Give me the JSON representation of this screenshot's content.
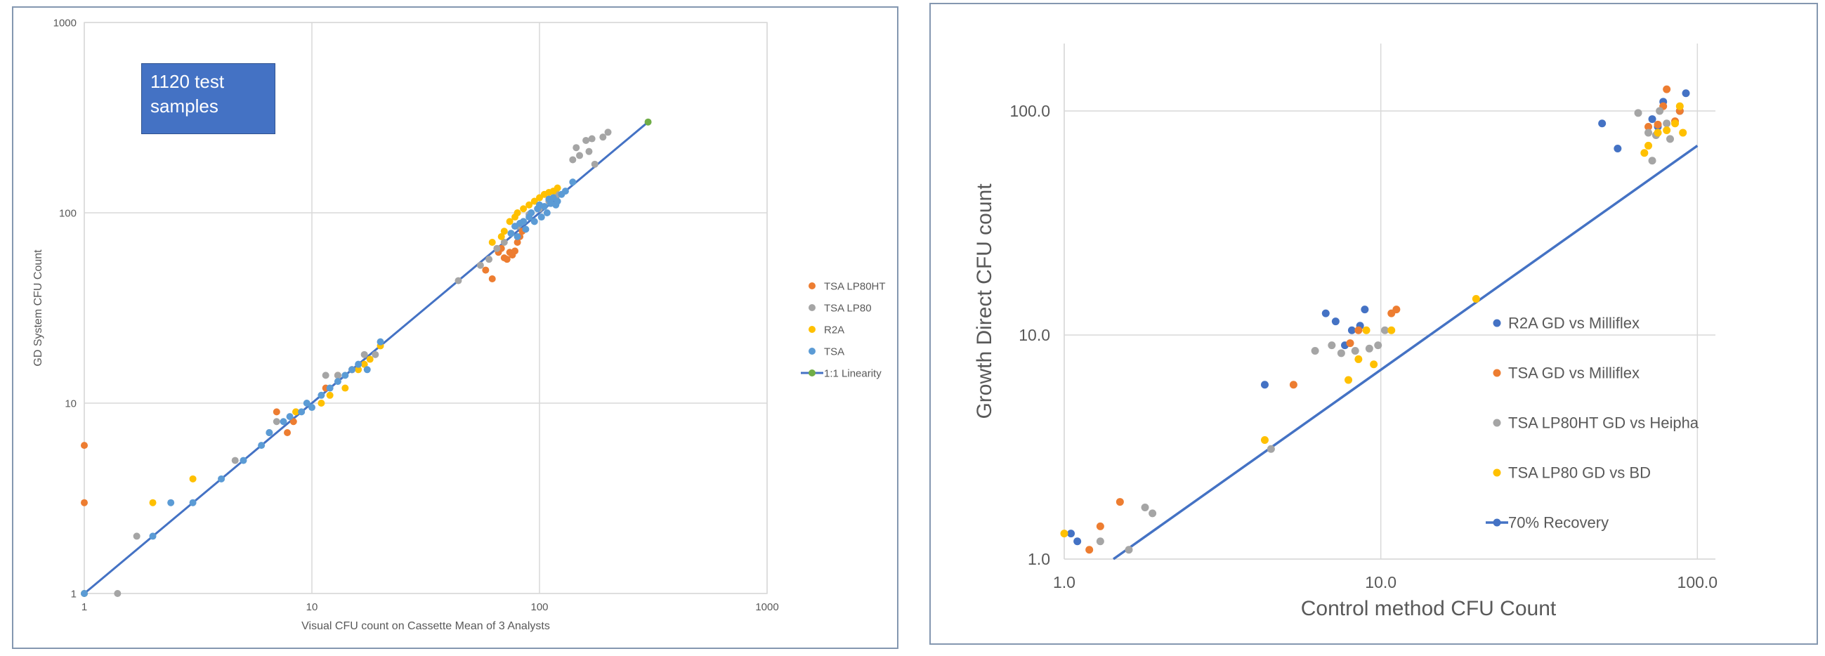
{
  "chart_data": [
    {
      "type": "scatter",
      "title": "",
      "xlabel": "Visual CFU count on Cassette Mean of 3 Analysts",
      "ylabel": "GD System CFU Count",
      "xscale": "log",
      "yscale": "log",
      "xlim": [
        1,
        1000
      ],
      "ylim": [
        1,
        1000
      ],
      "x_ticks": [
        "1",
        "10",
        "100",
        "1000"
      ],
      "y_ticks": [
        "1",
        "10",
        "100",
        "1000"
      ],
      "grid": true,
      "legend_position": "right",
      "annotation": "1120 test samples",
      "series": [
        {
          "name": "TSA LP80HT",
          "color": "#ed7d31",
          "marker": "dot",
          "x": [
            1,
            1,
            7,
            7.8,
            8.3,
            11.5,
            13,
            15,
            58,
            62,
            66,
            68,
            70,
            72,
            74,
            76,
            78,
            80,
            82,
            84
          ],
          "y": [
            6,
            3,
            9,
            7,
            8,
            12,
            14,
            15,
            50,
            45,
            62,
            65,
            58,
            57,
            62,
            60,
            63,
            70,
            75,
            80
          ]
        },
        {
          "name": "TSA LP80",
          "color": "#a5a5a5",
          "marker": "dot",
          "x": [
            1.4,
            1.7,
            4.6,
            6.5,
            7,
            8.5,
            11.5,
            13,
            15,
            17,
            19,
            44,
            55,
            60,
            65,
            70,
            75,
            80,
            85,
            90,
            100,
            110,
            120,
            140,
            145,
            150,
            160,
            165,
            170,
            175,
            190,
            200
          ],
          "y": [
            1,
            2,
            5,
            7,
            8,
            9,
            14,
            14,
            15,
            18,
            18,
            44,
            53,
            57,
            65,
            70,
            78,
            85,
            90,
            98,
            105,
            115,
            125,
            190,
            220,
            200,
            240,
            210,
            245,
            180,
            250,
            265
          ]
        },
        {
          "name": "R2A",
          "color": "#ffc000",
          "marker": "dot",
          "x": [
            2,
            3,
            8.5,
            11,
            12,
            14,
            16,
            17,
            18,
            20,
            62,
            68,
            70,
            74,
            78,
            80,
            85,
            90,
            95,
            100,
            105,
            110,
            115,
            120
          ],
          "y": [
            3,
            4,
            9,
            10,
            11,
            12,
            15,
            16,
            17,
            20,
            70,
            75,
            80,
            90,
            95,
            100,
            105,
            110,
            115,
            120,
            125,
            128,
            130,
            135
          ]
        },
        {
          "name": "TSA",
          "color": "#5b9bd5",
          "marker": "dot",
          "x": [
            1,
            2,
            2.4,
            3,
            4,
            5,
            6,
            6.5,
            7.5,
            8,
            9,
            9.5,
            10,
            11,
            12,
            13,
            14,
            15,
            16,
            17.5,
            20,
            75,
            78,
            80,
            82,
            85,
            87,
            90,
            92,
            95,
            98,
            100,
            102,
            105,
            108,
            110,
            112,
            115,
            118,
            120,
            125,
            130,
            140
          ],
          "y": [
            1,
            2,
            3,
            3,
            4,
            5,
            6,
            7,
            8,
            8.5,
            9,
            10,
            9.5,
            11,
            12,
            13,
            14,
            15,
            16,
            15,
            21,
            78,
            85,
            75,
            88,
            90,
            82,
            95,
            100,
            90,
            105,
            110,
            95,
            108,
            100,
            118,
            112,
            120,
            110,
            115,
            125,
            130,
            145
          ]
        },
        {
          "name": "1:1 Linearity",
          "color": "#4472c4",
          "marker": "line",
          "endpoint_color": "#70ad47",
          "x": [
            1,
            300
          ],
          "y": [
            1,
            300
          ]
        }
      ]
    },
    {
      "type": "scatter",
      "title": "",
      "xlabel": "Control method CFU Count",
      "ylabel": "Growth Direct CFU count",
      "xscale": "log",
      "yscale": "log",
      "xlim": [
        1,
        200
      ],
      "ylim": [
        1,
        200
      ],
      "x_ticks": [
        "1.0",
        "10.0",
        "100.0"
      ],
      "y_ticks": [
        "1.0",
        "10.0",
        "100.0"
      ],
      "grid": true,
      "legend_position": "right",
      "series": [
        {
          "name": "R2A GD vs Milliflex",
          "color": "#4472c4",
          "marker": "dot",
          "x": [
            1.05,
            1.1,
            4.3,
            6.7,
            7.2,
            7.7,
            8.1,
            8.6,
            8.9,
            50,
            56,
            72,
            75,
            78,
            88,
            92
          ],
          "y": [
            1.3,
            1.2,
            6,
            12.5,
            11.5,
            9,
            10.5,
            11,
            13,
            88,
            68,
            92,
            85,
            110,
            100,
            120
          ]
        },
        {
          "name": "TSA GD vs Milliflex",
          "color": "#ed7d31",
          "marker": "dot",
          "x": [
            1.2,
            1.3,
            1.5,
            5.3,
            8,
            8.5,
            10.8,
            11.2,
            70,
            75,
            78,
            80,
            85,
            88
          ],
          "y": [
            1.1,
            1.4,
            1.8,
            6,
            9.2,
            10.5,
            12.5,
            13,
            85,
            87,
            105,
            125,
            90,
            100
          ]
        },
        {
          "name": "TSA LP80HT GD vs Heipha",
          "color": "#a5a5a5",
          "marker": "dot",
          "x": [
            1.3,
            1.6,
            1.8,
            1.9,
            4.5,
            6.2,
            7,
            7.5,
            8.3,
            9.2,
            9.8,
            10.3,
            65,
            70,
            72,
            74,
            76,
            80,
            82
          ],
          "y": [
            1.2,
            1.1,
            1.7,
            1.6,
            3.1,
            8.5,
            9,
            8.3,
            8.5,
            8.7,
            9,
            10.5,
            98,
            80,
            60,
            78,
            100,
            88,
            75
          ]
        },
        {
          "name": "TSA LP80 GD vs BD",
          "color": "#ffc000",
          "marker": "dot",
          "x": [
            1,
            4.3,
            7.9,
            8.5,
            9,
            9.5,
            10.8,
            20,
            68,
            70,
            75,
            80,
            85,
            88,
            90
          ],
          "y": [
            1.3,
            3.4,
            6.3,
            7.8,
            10.5,
            7.4,
            10.5,
            14.5,
            65,
            70,
            80,
            82,
            88,
            105,
            80
          ]
        },
        {
          "name": "70% Recovery",
          "color": "#4472c4",
          "marker": "line",
          "x": [
            1.43,
            100
          ],
          "y": [
            1,
            70
          ]
        }
      ]
    }
  ]
}
